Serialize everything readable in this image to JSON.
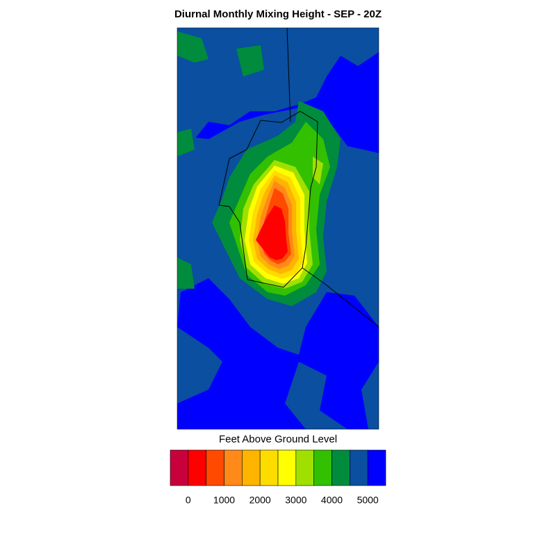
{
  "title": "Diurnal Monthly Mixing Height - SEP - 20Z",
  "colorbar": {
    "label": "Feet Above Ground Level",
    "colors": [
      "#c8003c",
      "#ff0000",
      "#ff4a00",
      "#ff8a1a",
      "#ffb400",
      "#ffdc00",
      "#ffff00",
      "#a0e000",
      "#32c000",
      "#008c3c",
      "#0a4fa0",
      "#0000ff"
    ],
    "clim": [
      -500,
      5500
    ],
    "ticks": [
      0,
      1000,
      2000,
      3000,
      4000,
      5000
    ]
  }
}
